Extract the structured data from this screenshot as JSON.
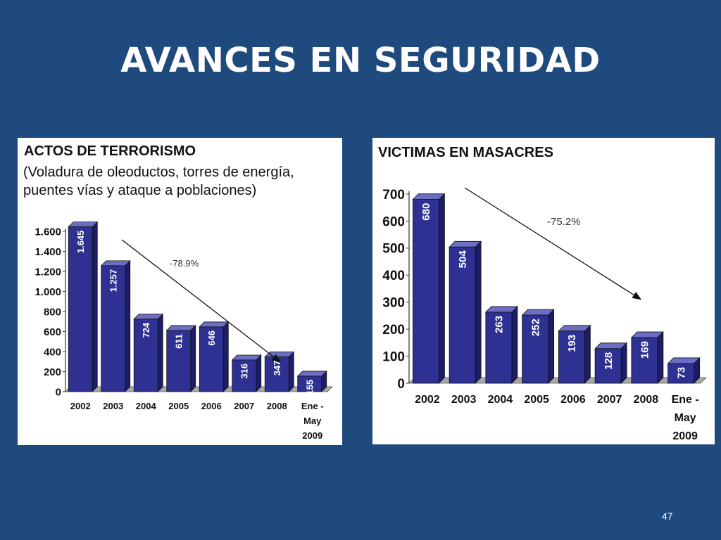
{
  "slide": {
    "title": "AVANCES EN SEGURIDAD",
    "page_number": "47",
    "background": "#1f4a7d"
  },
  "colors": {
    "bar_front": "#2e3192",
    "bar_top": "#6a6fc4",
    "bar_side": "#1b1d66",
    "floor": "#a8a8a8"
  },
  "chart_data": [
    {
      "type": "bar",
      "title": "ACTOS DE TERRORISMO",
      "subtitle": "(Voladura de oleoductos, torres de energía, puentes vías y ataque a poblaciones)",
      "categories": [
        "2002",
        "2003",
        "2004",
        "2005",
        "2006",
        "2007",
        "2008",
        "Ene - May 2009"
      ],
      "category_lines": [
        [
          "2002"
        ],
        [
          "2003"
        ],
        [
          "2004"
        ],
        [
          "2005"
        ],
        [
          "2006"
        ],
        [
          "2007"
        ],
        [
          "2008"
        ],
        [
          "Ene -",
          "May",
          "2009"
        ]
      ],
      "values": [
        1645,
        1257,
        724,
        611,
        646,
        316,
        347,
        155
      ],
      "value_labels": [
        "1.645",
        "1.257",
        "724",
        "611",
        "646",
        "316",
        "347",
        "155"
      ],
      "yticks": [
        0,
        200,
        400,
        600,
        800,
        1000,
        1200,
        1400,
        1600
      ],
      "ytick_labels": [
        "0",
        "200",
        "400",
        "600",
        "800",
        "1.000",
        "1.200",
        "1.400",
        "1.600"
      ],
      "ylim": [
        0,
        1600
      ],
      "annotation": "-78.9%",
      "grid": false,
      "legend": "none"
    },
    {
      "type": "bar",
      "title": "VICTIMAS EN MASACRES",
      "categories": [
        "2002",
        "2003",
        "2004",
        "2005",
        "2006",
        "2007",
        "2008",
        "Ene - May 2009"
      ],
      "category_lines": [
        [
          "2002"
        ],
        [
          "2003"
        ],
        [
          "2004"
        ],
        [
          "2005"
        ],
        [
          "2006"
        ],
        [
          "2007"
        ],
        [
          "2008"
        ],
        [
          "Ene -",
          "May",
          "2009"
        ]
      ],
      "values": [
        680,
        504,
        263,
        252,
        193,
        128,
        169,
        73
      ],
      "value_labels": [
        "680",
        "504",
        "263",
        "252",
        "193",
        "128",
        "169",
        "73"
      ],
      "yticks": [
        0,
        100,
        200,
        300,
        400,
        500,
        600,
        700
      ],
      "ytick_labels": [
        "0",
        "100",
        "200",
        "300",
        "400",
        "500",
        "600",
        "700"
      ],
      "ylim": [
        0,
        700
      ],
      "annotation": "-75.2%",
      "grid": false,
      "legend": "none"
    }
  ]
}
